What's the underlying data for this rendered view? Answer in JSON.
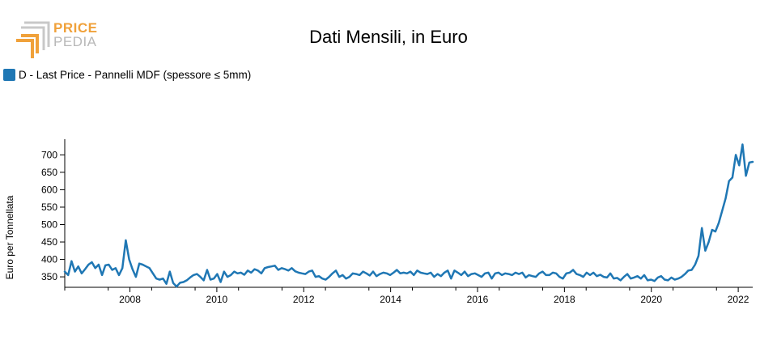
{
  "header": {
    "logo_word_1": "PRICE",
    "logo_word_2": "PEDIA"
  },
  "colors": {
    "series": "#1f77b4",
    "logo_orange": "#f0a13a",
    "logo_gray": "#b8b8b8"
  },
  "chart_data": {
    "type": "line",
    "title": "Dati Mensili, in Euro",
    "xlabel": "",
    "ylabel": "Euro per Tonnellata",
    "x_ticks": [
      "2008",
      "2010",
      "2012",
      "2014",
      "2016",
      "2018",
      "2020",
      "2022"
    ],
    "y_ticks": [
      350,
      400,
      450,
      500,
      550,
      600,
      650,
      700
    ],
    "xlim": [
      "2007-01",
      "2022-11"
    ],
    "ylim": [
      320,
      745
    ],
    "legend_position": "top-left",
    "grid": false,
    "series": [
      {
        "name": "D - Last Price - Pannelli MDF (spessore ≤ 5mm)",
        "color": "#1f77b4",
        "values": [
          365,
          355,
          395,
          365,
          380,
          360,
          372,
          385,
          392,
          375,
          385,
          355,
          383,
          385,
          370,
          375,
          355,
          375,
          455,
          400,
          372,
          350,
          388,
          385,
          380,
          375,
          360,
          345,
          342,
          345,
          330,
          365,
          332,
          322,
          333,
          335,
          340,
          348,
          355,
          358,
          350,
          340,
          370,
          342,
          345,
          358,
          335,
          365,
          350,
          355,
          365,
          360,
          362,
          356,
          368,
          362,
          372,
          368,
          360,
          375,
          378,
          380,
          382,
          370,
          375,
          372,
          368,
          375,
          366,
          362,
          360,
          358,
          365,
          368,
          350,
          352,
          345,
          342,
          350,
          360,
          368,
          350,
          355,
          345,
          350,
          360,
          358,
          355,
          365,
          360,
          354,
          365,
          352,
          358,
          362,
          360,
          355,
          362,
          370,
          360,
          362,
          360,
          365,
          355,
          368,
          362,
          360,
          358,
          362,
          350,
          358,
          352,
          362,
          368,
          345,
          368,
          362,
          355,
          365,
          352,
          358,
          360,
          355,
          350,
          360,
          362,
          345,
          360,
          362,
          355,
          360,
          358,
          355,
          362,
          358,
          362,
          348,
          355,
          352,
          350,
          360,
          365,
          355,
          355,
          362,
          360,
          350,
          345,
          360,
          362,
          370,
          358,
          355,
          350,
          362,
          355,
          362,
          352,
          356,
          350,
          348,
          360,
          345,
          347,
          340,
          350,
          358,
          345,
          348,
          352,
          345,
          355,
          340,
          342,
          338,
          348,
          352,
          342,
          340,
          348,
          342,
          345,
          350,
          358,
          368,
          370,
          385,
          410,
          490,
          425,
          450,
          485,
          480,
          505,
          540,
          575,
          625,
          635,
          700,
          670,
          730,
          640,
          678,
          680
        ]
      }
    ]
  }
}
